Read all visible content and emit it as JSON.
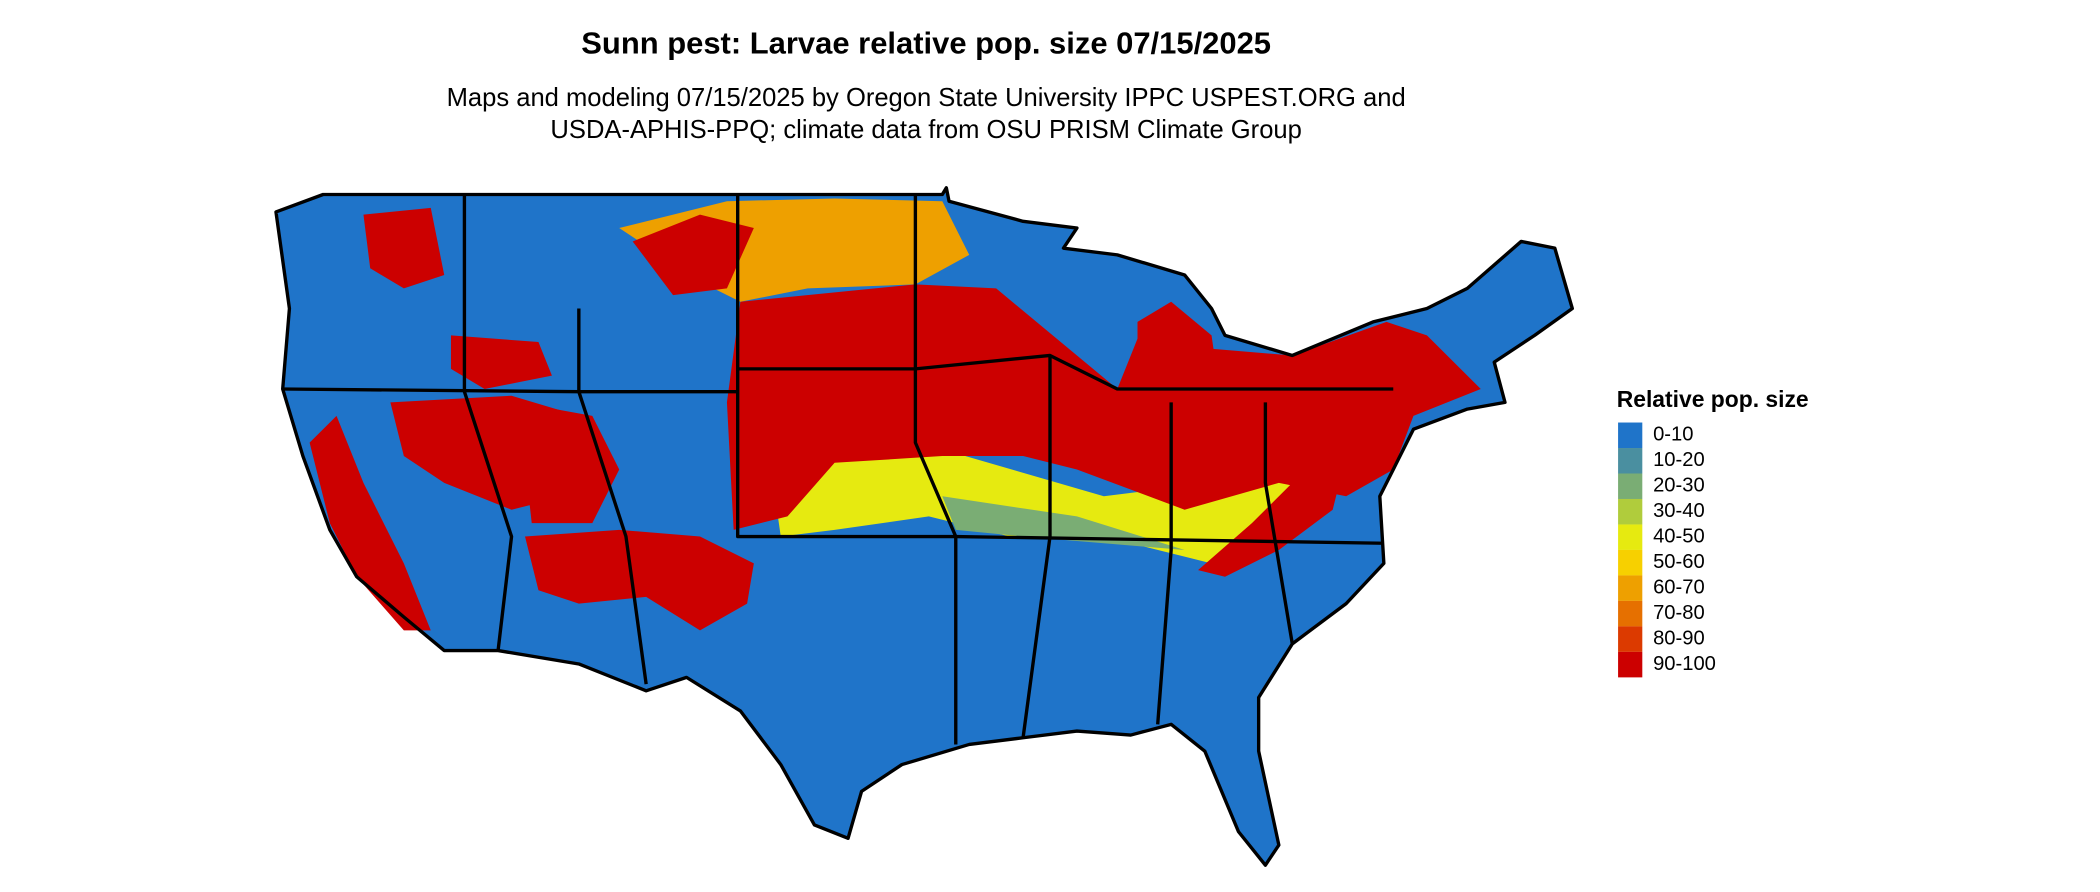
{
  "title": "Sunn pest: Larvae relative pop. size 07/15/2025",
  "subtitle": [
    "Maps and modeling 07/15/2025 by Oregon State University IPPC USPEST.ORG and",
    "USDA-APHIS-PPQ; climate data from OSU PRISM Climate Group"
  ],
  "legend": {
    "title": "Relative pop. size",
    "items": [
      {
        "label": "0-10",
        "color": "#1f74c9"
      },
      {
        "label": "10-20",
        "color": "#4a8fa0"
      },
      {
        "label": "20-30",
        "color": "#7aad74"
      },
      {
        "label": "30-40",
        "color": "#b0cc3c"
      },
      {
        "label": "40-50",
        "color": "#e6ea10"
      },
      {
        "label": "50-60",
        "color": "#f7d000"
      },
      {
        "label": "60-70",
        "color": "#eea000"
      },
      {
        "label": "70-80",
        "color": "#e67000"
      },
      {
        "label": "80-90",
        "color": "#dc3a00"
      },
      {
        "label": "90-100",
        "color": "#cc0000"
      }
    ]
  }
}
